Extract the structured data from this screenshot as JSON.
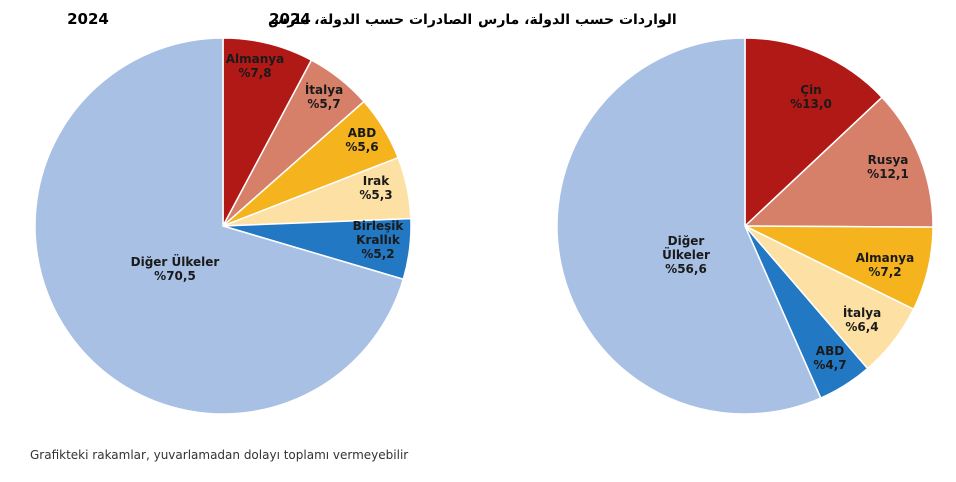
{
  "titles": {
    "exports_prefix": "الصادرات حسب الدولة، مارس",
    "exports_date": "2024",
    "imports_prefix": "الواردات حسب الدولة، مارس",
    "imports_date": "2024"
  },
  "footnote": "Grafikteki rakamlar, yuvarlamadan dolayı toplamı vermeyebilir",
  "chart_data": [
    {
      "type": "pie",
      "title": "الصادرات حسب الدولة، مارس 2024",
      "slices": [
        {
          "label": [
            "Almanya"
          ],
          "value_text": "%7,8",
          "value": 7.8,
          "color": "#b11917"
        },
        {
          "label": [
            "İtalya"
          ],
          "value_text": "%5,7",
          "value": 5.7,
          "color": "#d6806a"
        },
        {
          "label": [
            "ABD"
          ],
          "value_text": "%5,6",
          "value": 5.6,
          "color": "#f5b41e"
        },
        {
          "label": [
            "Irak"
          ],
          "value_text": "%5,3",
          "value": 5.3,
          "color": "#fde0a4"
        },
        {
          "label": [
            "Birleşik",
            "Krallık"
          ],
          "value_text": "%5,2",
          "value": 5.2,
          "color": "#2278c3"
        },
        {
          "label": [
            "Diğer Ülkeler"
          ],
          "value_text": "%70,5",
          "value": 70.5,
          "color": "#a8c0e4"
        }
      ]
    },
    {
      "type": "pie",
      "title": "الواردات حسب الدولة، مارس 2024",
      "slices": [
        {
          "label": [
            "Çin"
          ],
          "value_text": "%13,0",
          "value": 13.0,
          "color": "#b11917"
        },
        {
          "label": [
            "Rusya"
          ],
          "value_text": "%12,1",
          "value": 12.1,
          "color": "#d6806a"
        },
        {
          "label": [
            "Almanya"
          ],
          "value_text": "%7,2",
          "value": 7.2,
          "color": "#f5b41e"
        },
        {
          "label": [
            "İtalya"
          ],
          "value_text": "%6,4",
          "value": 6.4,
          "color": "#fde0a4"
        },
        {
          "label": [
            "ABD"
          ],
          "value_text": "%4,7",
          "value": 4.7,
          "color": "#2278c3"
        },
        {
          "label": [
            "Diğer",
            "Ülkeler"
          ],
          "value_text": "%56,6",
          "value": 56.6,
          "color": "#a8c0e4"
        }
      ]
    }
  ]
}
